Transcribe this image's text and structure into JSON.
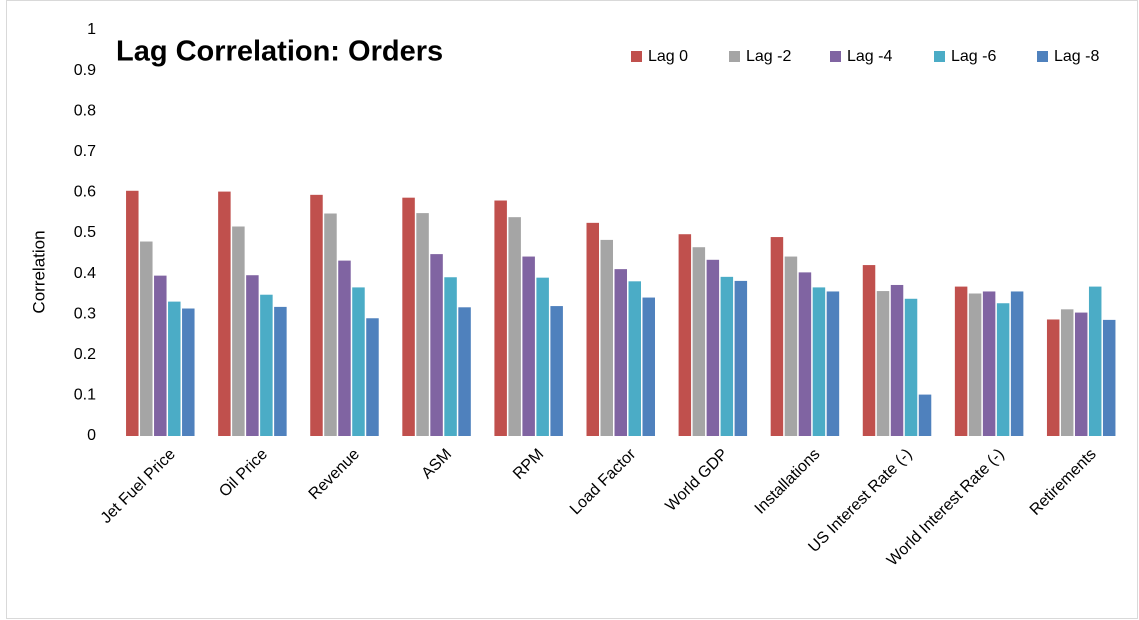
{
  "chart_data": {
    "type": "bar",
    "title": "Lag Correlation: Orders",
    "y_label": "Correlation",
    "categories": [
      "Jet Fuel Price",
      "Oil Price",
      "Revenue",
      "ASM",
      "RPM",
      "Load Factor",
      "World GDP",
      "Installations",
      "US Interest Rate (-)",
      "World Interest Rate (-)",
      "Retirements"
    ],
    "series": [
      {
        "name": "Lag 0",
        "color": "#c0504d",
        "values": [
          0.604,
          0.602,
          0.594,
          0.587,
          0.58,
          0.525,
          0.497,
          0.49,
          0.421,
          0.368,
          0.287
        ]
      },
      {
        "name": "Lag -2",
        "color": "#a5a5a5",
        "values": [
          0.479,
          0.516,
          0.548,
          0.549,
          0.539,
          0.483,
          0.465,
          0.442,
          0.357,
          0.351,
          0.312
        ]
      },
      {
        "name": "Lag -4",
        "color": "#8064a2",
        "values": [
          0.395,
          0.396,
          0.432,
          0.448,
          0.442,
          0.411,
          0.434,
          0.403,
          0.372,
          0.356,
          0.304
        ]
      },
      {
        "name": "Lag -6",
        "color": "#4bacc6",
        "values": [
          0.331,
          0.348,
          0.366,
          0.391,
          0.39,
          0.381,
          0.392,
          0.366,
          0.338,
          0.327,
          0.368
        ]
      },
      {
        "name": "Lag -8",
        "color": "#4f81bd",
        "values": [
          0.314,
          0.318,
          0.29,
          0.317,
          0.32,
          0.341,
          0.382,
          0.356,
          0.102,
          0.356,
          0.286
        ]
      }
    ],
    "ylim": [
      0,
      1
    ],
    "yticks": [
      0,
      0.1,
      0.2,
      0.3,
      0.4,
      0.5,
      0.6,
      0.7,
      0.8,
      0.9,
      1
    ],
    "grid": false,
    "legend": "top-right"
  }
}
